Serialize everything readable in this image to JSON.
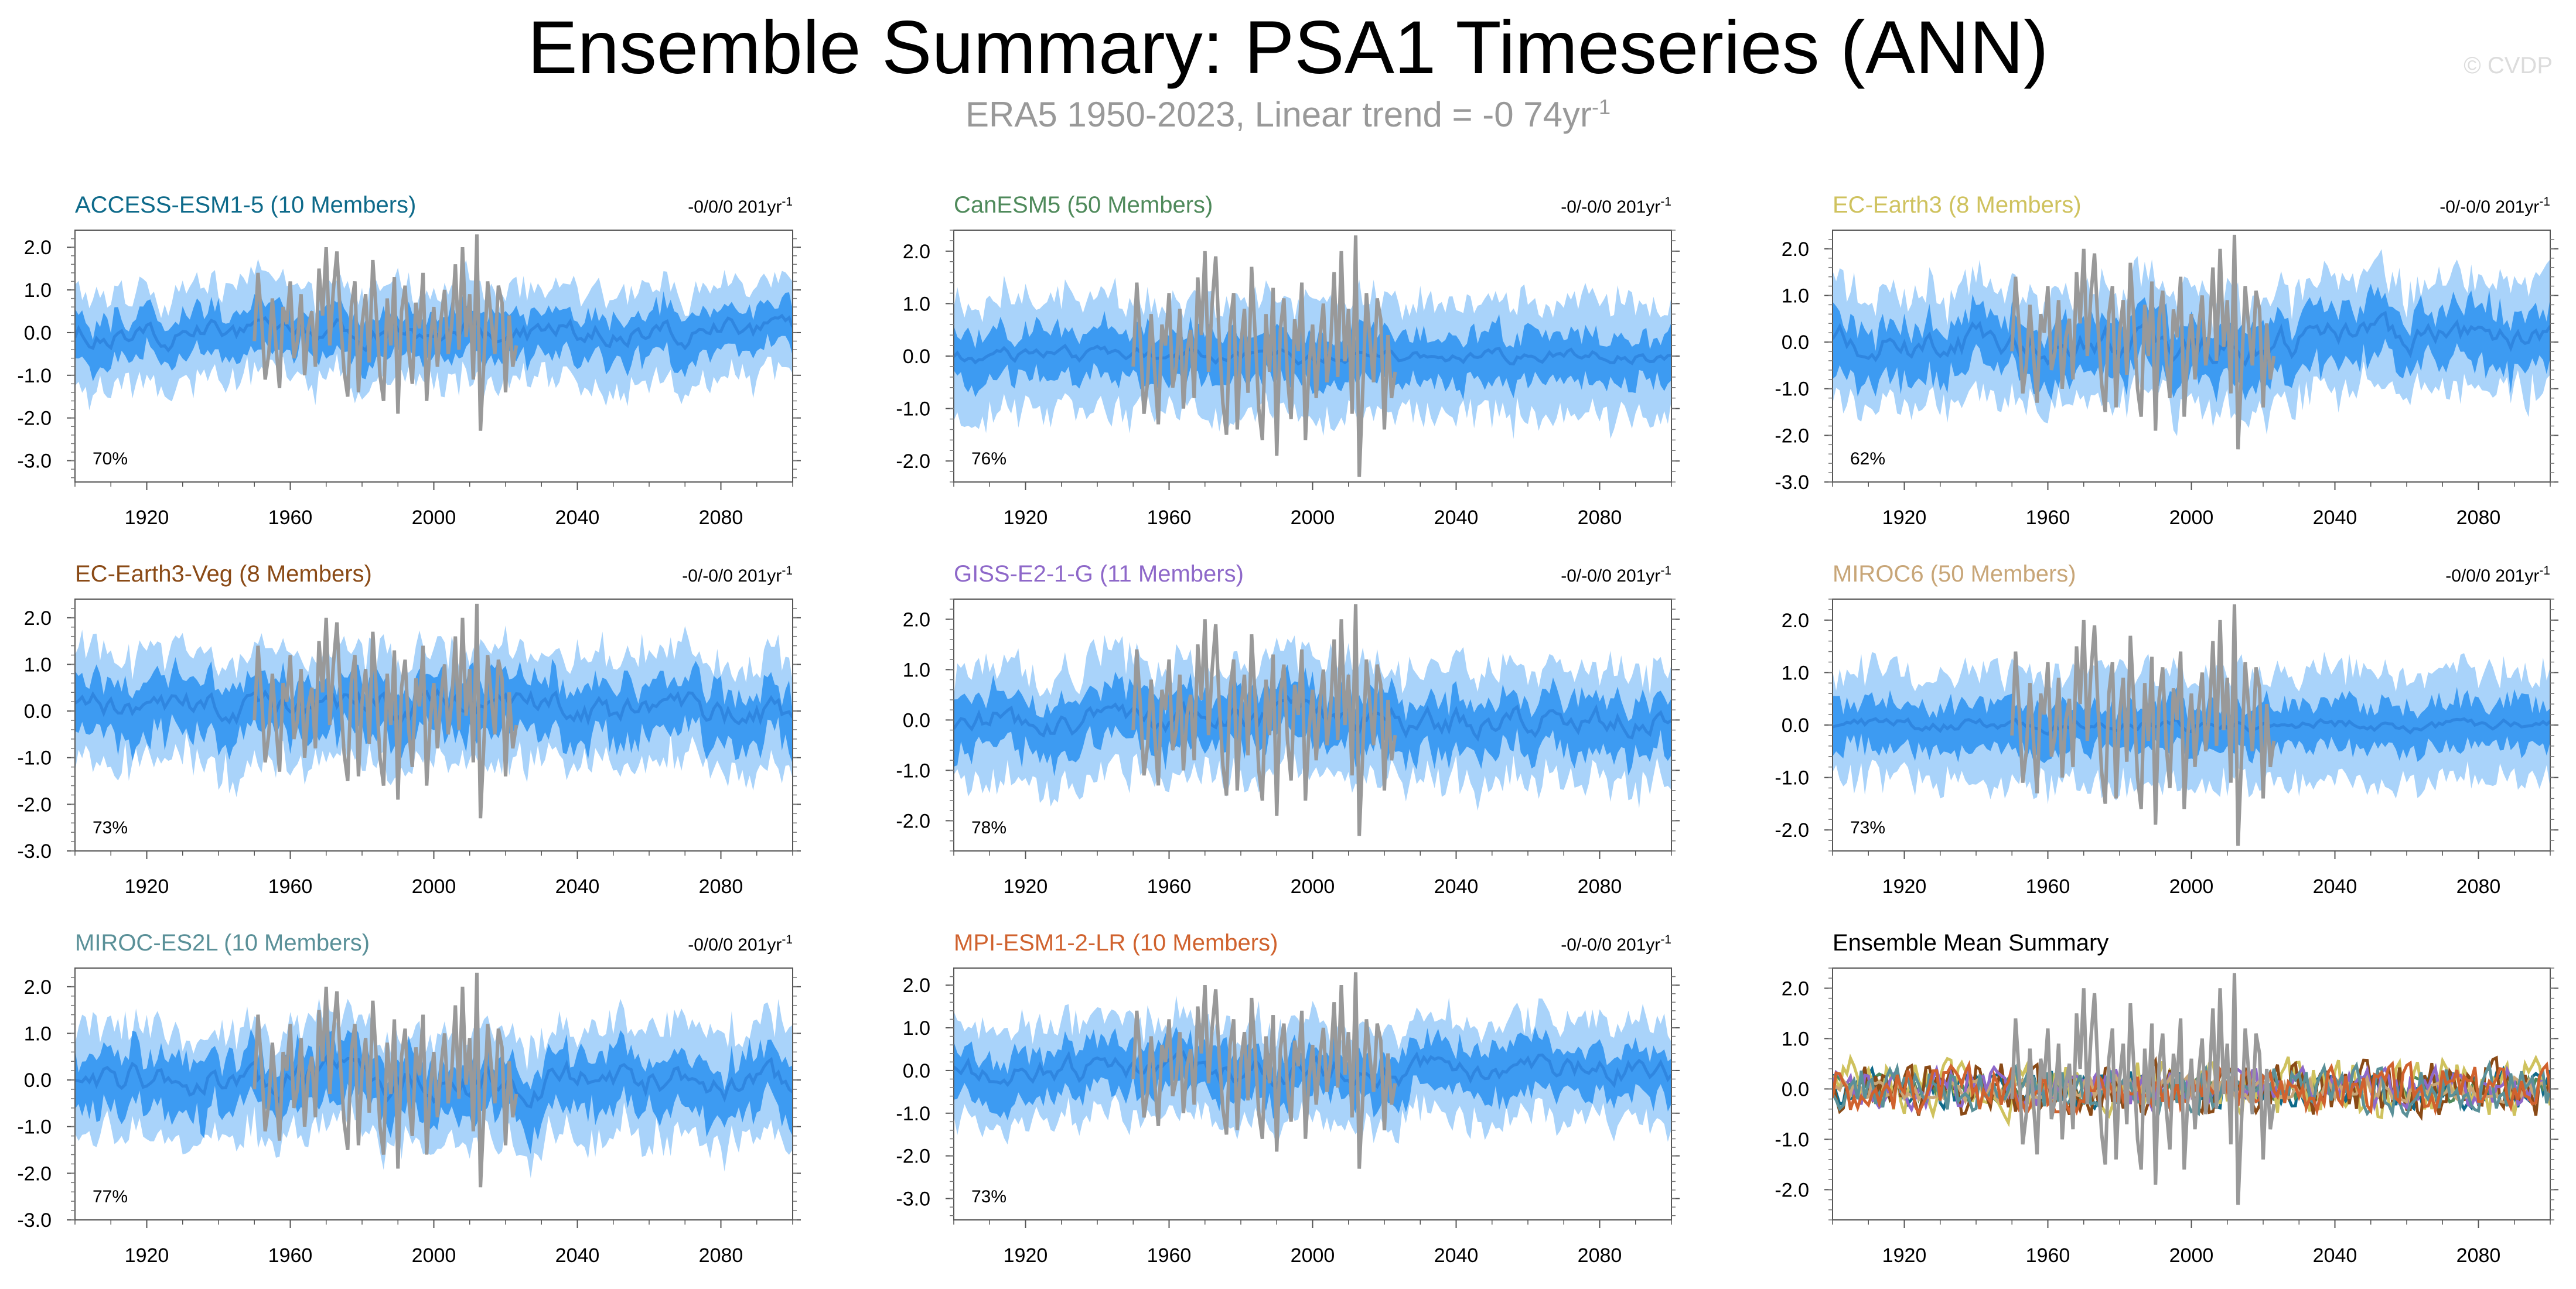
{
  "title": "Ensemble Summary: PSA1 Timeseries (ANN)",
  "subtitle_main": "ERA5 1950-2023, Linear trend = -0 74yr",
  "subtitle_sup": "-1",
  "watermark": "© CVDP",
  "colors": {
    "outer_band": "#a9d3fa",
    "inner_band": "#3d9bf2",
    "ensemble_mean": "#2f86e0",
    "observations": "#999999"
  },
  "chart_data": [
    {
      "type": "area",
      "title": "ACCESS-ESM1-5 (10 Members)",
      "title_color": "#0e6a8a",
      "trend_label": "-0/0/0 201yr",
      "trend_sup": "-1",
      "percent_label": "70%",
      "xlim": [
        1900,
        2100
      ],
      "ylim": [
        -3.5,
        2.4
      ],
      "yticks": [
        2.0,
        1.0,
        0.0,
        -1.0,
        -2.0,
        -3.0
      ],
      "ytick_labels": [
        "2.0",
        "1.0",
        "0.0",
        "-1.0",
        "-2.0",
        "-3.0"
      ],
      "xticks": [
        1920,
        1960,
        2000,
        2040,
        2080
      ],
      "xtick_labels": [
        "1920",
        "1960",
        "2000",
        "2040",
        "2080"
      ],
      "series": [
        {
          "role": "outer_band",
          "amplitude": 1.25,
          "offset": 0.3
        },
        {
          "role": "inner_band",
          "amplitude": 0.7,
          "offset": 0.15
        },
        {
          "role": "ensemble_mean",
          "amplitude": 0.25
        }
      ]
    },
    {
      "type": "area",
      "title": "CanESM5 (50 Members)",
      "title_color": "#4f8a5b",
      "trend_label": "-0/-0/0 201yr",
      "trend_sup": "-1",
      "percent_label": "76%",
      "xlim": [
        1900,
        2100
      ],
      "ylim": [
        -2.4,
        2.4
      ],
      "yticks": [
        2.0,
        1.0,
        0.0,
        -1.0,
        -2.0
      ],
      "ytick_labels": [
        "2.0",
        "1.0",
        "0.0",
        "-1.0",
        "-2.0"
      ],
      "xticks": [
        1920,
        1960,
        2000,
        2040,
        2080
      ],
      "xtick_labels": [
        "1920",
        "1960",
        "2000",
        "2040",
        "2080"
      ],
      "series": [
        {
          "role": "outer_band",
          "amplitude": 1.3,
          "offset": 0.2
        },
        {
          "role": "inner_band",
          "amplitude": 0.65,
          "offset": 0.1
        },
        {
          "role": "ensemble_mean",
          "amplitude": 0.12
        }
      ]
    },
    {
      "type": "area",
      "title": "EC-Earth3 (8 Members)",
      "title_color": "#cfc25e",
      "trend_label": "-0/-0/0 201yr",
      "trend_sup": "-1",
      "percent_label": "62%",
      "xlim": [
        1900,
        2100
      ],
      "ylim": [
        -3.0,
        2.4
      ],
      "yticks": [
        2.0,
        1.0,
        0.0,
        -1.0,
        -2.0,
        -3.0
      ],
      "ytick_labels": [
        "2.0",
        "1.0",
        "0.0",
        "-1.0",
        "-2.0",
        "-3.0"
      ],
      "xticks": [
        1920,
        1960,
        2000,
        2040,
        2080
      ],
      "xtick_labels": [
        "1920",
        "1960",
        "2000",
        "2040",
        "2080"
      ],
      "series": [
        {
          "role": "outer_band",
          "amplitude": 1.3,
          "offset": 0.45
        },
        {
          "role": "inner_band",
          "amplitude": 0.75,
          "offset": 0.3
        },
        {
          "role": "ensemble_mean",
          "amplitude": 0.3
        }
      ]
    },
    {
      "type": "area",
      "title": "EC-Earth3-Veg (8 Members)",
      "title_color": "#8a4a16",
      "trend_label": "-0/-0/0 201yr",
      "trend_sup": "-1",
      "percent_label": "73%",
      "xlim": [
        1900,
        2100
      ],
      "ylim": [
        -3.0,
        2.4
      ],
      "yticks": [
        2.0,
        1.0,
        0.0,
        -1.0,
        -2.0,
        -3.0
      ],
      "ytick_labels": [
        "2.0",
        "1.0",
        "0.0",
        "-1.0",
        "-2.0",
        "-3.0"
      ],
      "xticks": [
        1920,
        1960,
        2000,
        2040,
        2080
      ],
      "xtick_labels": [
        "1920",
        "1960",
        "2000",
        "2040",
        "2080"
      ],
      "series": [
        {
          "role": "outer_band",
          "amplitude": 1.3,
          "offset": 0.45
        },
        {
          "role": "inner_band",
          "amplitude": 0.75,
          "offset": 0.3
        },
        {
          "role": "ensemble_mean",
          "amplitude": 0.3
        }
      ]
    },
    {
      "type": "area",
      "title": "GISS-E2-1-G (11 Members)",
      "title_color": "#8e68c9",
      "trend_label": "-0/-0/0 201yr",
      "trend_sup": "-1",
      "percent_label": "78%",
      "xlim": [
        1900,
        2100
      ],
      "ylim": [
        -2.6,
        2.4
      ],
      "yticks": [
        2.0,
        1.0,
        0.0,
        -1.0,
        -2.0
      ],
      "ytick_labels": [
        "2.0",
        "1.0",
        "0.0",
        "-1.0",
        "-2.0"
      ],
      "xticks": [
        1920,
        1960,
        2000,
        2040,
        2080
      ],
      "xtick_labels": [
        "1920",
        "1960",
        "2000",
        "2040",
        "2080"
      ],
      "series": [
        {
          "role": "outer_band",
          "amplitude": 1.3,
          "offset": 0.35
        },
        {
          "role": "inner_band",
          "amplitude": 0.7,
          "offset": 0.2
        },
        {
          "role": "ensemble_mean",
          "amplitude": 0.25
        }
      ]
    },
    {
      "type": "area",
      "title": "MIROC6 (50 Members)",
      "title_color": "#c8a678",
      "trend_label": "-0/0/0 201yr",
      "trend_sup": "-1",
      "percent_label": "73%",
      "xlim": [
        1900,
        2100
      ],
      "ylim": [
        -2.4,
        2.4
      ],
      "yticks": [
        2.0,
        1.0,
        0.0,
        -1.0,
        -2.0
      ],
      "ytick_labels": [
        "2.0",
        "1.0",
        "0.0",
        "-1.0",
        "-2.0"
      ],
      "xticks": [
        1920,
        1960,
        2000,
        2040,
        2080
      ],
      "xtick_labels": [
        "1920",
        "1960",
        "2000",
        "2040",
        "2080"
      ],
      "series": [
        {
          "role": "outer_band",
          "amplitude": 1.25,
          "offset": 0.2
        },
        {
          "role": "inner_band",
          "amplitude": 0.6,
          "offset": 0.1
        },
        {
          "role": "ensemble_mean",
          "amplitude": 0.1
        }
      ]
    },
    {
      "type": "area",
      "title": "MIROC-ES2L (10 Members)",
      "title_color": "#5a9098",
      "trend_label": "-0/0/0 201yr",
      "trend_sup": "-1",
      "percent_label": "77%",
      "xlim": [
        1900,
        2100
      ],
      "ylim": [
        -3.0,
        2.4
      ],
      "yticks": [
        2.0,
        1.0,
        0.0,
        -1.0,
        -2.0,
        -3.0
      ],
      "ytick_labels": [
        "2.0",
        "1.0",
        "0.0",
        "-1.0",
        "-2.0",
        "-3.0"
      ],
      "xticks": [
        1920,
        1960,
        2000,
        2040,
        2080
      ],
      "xtick_labels": [
        "1920",
        "1960",
        "2000",
        "2040",
        "2080"
      ],
      "series": [
        {
          "role": "outer_band",
          "amplitude": 1.3,
          "offset": 0.45
        },
        {
          "role": "inner_band",
          "amplitude": 0.75,
          "offset": 0.3
        },
        {
          "role": "ensemble_mean",
          "amplitude": 0.32
        }
      ]
    },
    {
      "type": "area",
      "title": "MPI-ESM1-2-LR (10 Members)",
      "title_color": "#d0622e",
      "trend_label": "-0/-0/0 201yr",
      "trend_sup": "-1",
      "percent_label": "73%",
      "xlim": [
        1900,
        2100
      ],
      "ylim": [
        -3.5,
        2.4
      ],
      "yticks": [
        2.0,
        1.0,
        0.0,
        -1.0,
        -2.0,
        -3.0
      ],
      "ytick_labels": [
        "2.0",
        "1.0",
        "0.0",
        "-1.0",
        "-2.0",
        "-3.0"
      ],
      "xticks": [
        1920,
        1960,
        2000,
        2040,
        2080
      ],
      "xtick_labels": [
        "1920",
        "1960",
        "2000",
        "2040",
        "2080"
      ],
      "series": [
        {
          "role": "outer_band",
          "amplitude": 1.3,
          "offset": 0.35
        },
        {
          "role": "inner_band",
          "amplitude": 0.72,
          "offset": 0.2
        },
        {
          "role": "ensemble_mean",
          "amplitude": 0.28
        }
      ]
    },
    {
      "type": "line",
      "title": "Ensemble Mean Summary",
      "title_color": "#000000",
      "trend_label": "",
      "trend_sup": "",
      "percent_label": "",
      "xlim": [
        1900,
        2100
      ],
      "ylim": [
        -2.6,
        2.4
      ],
      "yticks": [
        2.0,
        1.0,
        0.0,
        -1.0,
        -2.0
      ],
      "ytick_labels": [
        "2.0",
        "1.0",
        "0.0",
        "-1.0",
        "-2.0"
      ],
      "xticks": [
        1920,
        1960,
        2000,
        2040,
        2080
      ],
      "xtick_labels": [
        "1920",
        "1960",
        "2000",
        "2040",
        "2080"
      ],
      "series": [
        {
          "role": "model_mean",
          "color": "#0e6a8a",
          "amplitude": 0.3
        },
        {
          "role": "model_mean",
          "color": "#4f8a5b",
          "amplitude": 0.2
        },
        {
          "role": "model_mean",
          "color": "#cfc25e",
          "amplitude": 0.45
        },
        {
          "role": "model_mean",
          "color": "#8a4a16",
          "amplitude": 0.42
        },
        {
          "role": "model_mean",
          "color": "#8e68c9",
          "amplitude": 0.3
        },
        {
          "role": "model_mean",
          "color": "#c8a678",
          "amplitude": 0.18
        },
        {
          "role": "model_mean",
          "color": "#5a9098",
          "amplitude": 0.35
        },
        {
          "role": "model_mean",
          "color": "#d0622e",
          "amplitude": 0.35
        }
      ]
    }
  ],
  "observations": {
    "years": [
      1950,
      1951,
      1952,
      1953,
      1954,
      1955,
      1956,
      1957,
      1958,
      1959,
      1960,
      1961,
      1962,
      1963,
      1964,
      1965,
      1966,
      1967,
      1968,
      1969,
      1970,
      1971,
      1972,
      1973,
      1974,
      1975,
      1976,
      1977,
      1978,
      1979,
      1980,
      1981,
      1982,
      1983,
      1984,
      1985,
      1986,
      1987,
      1988,
      1989,
      1990,
      1991,
      1992,
      1993,
      1994,
      1995,
      1996,
      1997,
      1998,
      1999,
      2000,
      2001,
      2002,
      2003,
      2004,
      2005,
      2006,
      2007,
      2008,
      2009,
      2010,
      2011,
      2012,
      2013,
      2014,
      2015,
      2016,
      2017,
      2018,
      2019,
      2020,
      2021,
      2022,
      2023
    ],
    "values": [
      -0.2,
      1.4,
      0.3,
      -1.1,
      -0.5,
      0.8,
      -0.3,
      -1.3,
      0.6,
      0.2,
      1.2,
      -0.6,
      -0.2,
      0.9,
      -1.0,
      0.1,
      0.5,
      -0.8,
      1.5,
      0.4,
      2.0,
      -0.3,
      1.0,
      1.9,
      0.3,
      -0.9,
      -1.5,
      0.6,
      1.2,
      -1.4,
      0.2,
      0.9,
      -0.7,
      1.7,
      0.4,
      -1.0,
      -1.6,
      0.8,
      -0.3,
      1.3,
      -1.9,
      0.5,
      1.1,
      -0.4,
      -1.2,
      0.7,
      0.1,
      1.4,
      -1.6,
      -0.2,
      0.6,
      -0.8,
      0.3,
      1.0,
      -0.5,
      0.2,
      1.6,
      -0.4,
      2.0,
      -0.1,
      0.9,
      -1.1,
      2.3,
      -2.3,
      -0.6,
      1.2,
      0.3,
      -0.5,
      1.1,
      0.7,
      -1.4,
      0.4,
      -0.8,
      -0.3
    ]
  }
}
